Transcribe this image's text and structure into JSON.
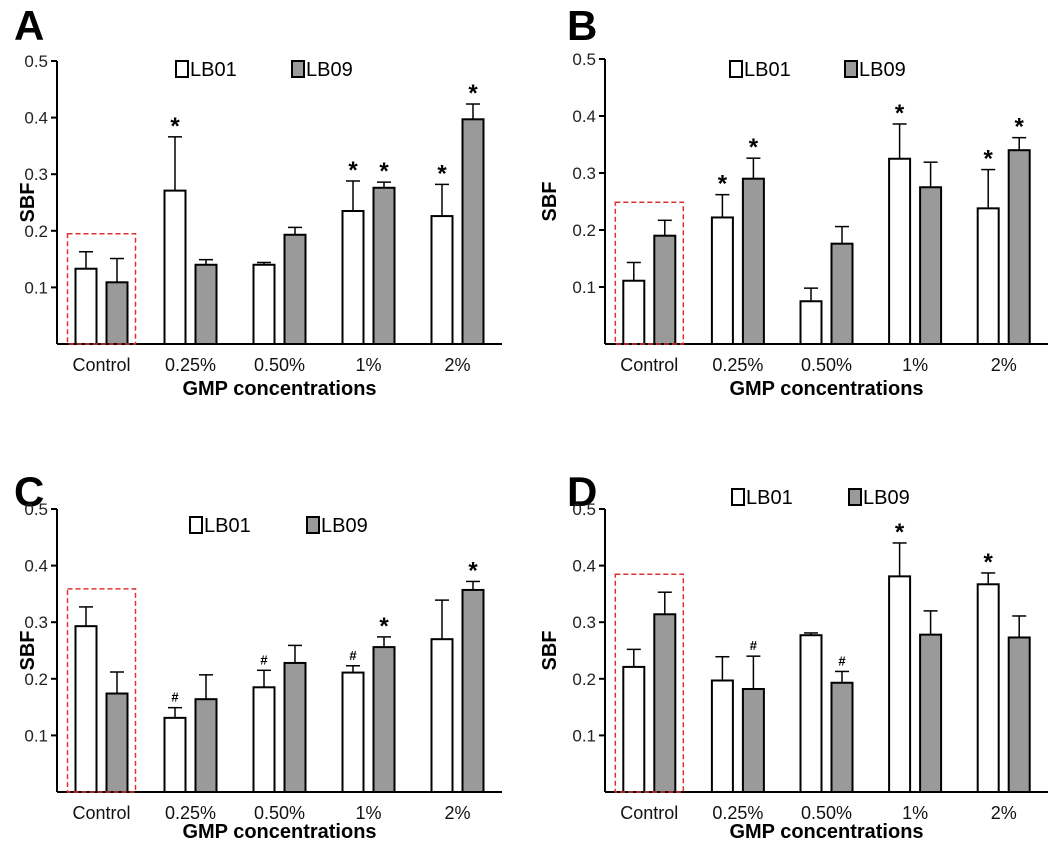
{
  "chart_data": [
    {
      "panel": "A",
      "type": "bar",
      "categories": [
        "Control",
        "0.25%",
        "0.50%",
        "1%",
        "2%"
      ],
      "series": [
        {
          "name": "LB01",
          "values": [
            0.133,
            0.271,
            0.14,
            0.235,
            0.226
          ],
          "errors": [
            0.03,
            0.095,
            0.004,
            0.053,
            0.056
          ],
          "marks": [
            "",
            "*",
            "",
            "*",
            "*"
          ]
        },
        {
          "name": "LB09",
          "values": [
            0.109,
            0.14,
            0.193,
            0.276,
            0.397
          ],
          "errors": [
            0.042,
            0.009,
            0.013,
            0.01,
            0.027
          ],
          "marks": [
            "",
            "",
            "",
            "*",
            "*"
          ]
        }
      ],
      "xlabel": "GMP concentrations",
      "ylabel": "SBF",
      "ylim": [
        0,
        0.5
      ],
      "yticks": [
        "0.1",
        "0.2",
        "0.3",
        "0.4",
        "0.5"
      ],
      "highlight_category": "Control"
    },
    {
      "panel": "B",
      "type": "bar",
      "categories": [
        "Control",
        "0.25%",
        "0.50%",
        "1%",
        "2%"
      ],
      "series": [
        {
          "name": "LB01",
          "values": [
            0.111,
            0.222,
            0.075,
            0.325,
            0.238
          ],
          "errors": [
            0.032,
            0.04,
            0.023,
            0.061,
            0.068
          ],
          "marks": [
            "",
            "*",
            "",
            "*",
            "*"
          ]
        },
        {
          "name": "LB09",
          "values": [
            0.19,
            0.29,
            0.176,
            0.275,
            0.34
          ],
          "errors": [
            0.027,
            0.036,
            0.03,
            0.044,
            0.022
          ],
          "marks": [
            "",
            "*",
            "",
            "",
            "*"
          ]
        }
      ],
      "xlabel": "GMP concentrations",
      "ylabel": "SBF",
      "ylim": [
        0,
        0.5
      ],
      "yticks": [
        "0.1",
        "0.2",
        "0.3",
        "0.4",
        "0.5"
      ],
      "highlight_category": "Control"
    },
    {
      "panel": "C",
      "type": "bar",
      "categories": [
        "Control",
        "0.25%",
        "0.50%",
        "1%",
        "2%"
      ],
      "series": [
        {
          "name": "LB01",
          "values": [
            0.293,
            0.131,
            0.185,
            0.211,
            0.27
          ],
          "errors": [
            0.034,
            0.018,
            0.03,
            0.012,
            0.069
          ],
          "marks": [
            "",
            "#",
            "#",
            "#",
            ""
          ]
        },
        {
          "name": "LB09",
          "values": [
            0.174,
            0.164,
            0.228,
            0.256,
            0.357
          ],
          "errors": [
            0.038,
            0.043,
            0.031,
            0.018,
            0.015
          ],
          "marks": [
            "",
            "",
            "",
            "*",
            "*"
          ]
        }
      ],
      "xlabel": "GMP concentrations",
      "ylabel": "SBF",
      "ylim": [
        0,
        0.5
      ],
      "yticks": [
        "0.1",
        "0.2",
        "0.3",
        "0.4",
        "0.5"
      ],
      "highlight_category": "Control"
    },
    {
      "panel": "D",
      "type": "bar",
      "categories": [
        "Control",
        "0.25%",
        "0.50%",
        "1%",
        "2%"
      ],
      "series": [
        {
          "name": "LB01",
          "values": [
            0.221,
            0.197,
            0.277,
            0.381,
            0.367
          ],
          "errors": [
            0.031,
            0.042,
            0.004,
            0.059,
            0.02
          ],
          "marks": [
            "",
            "",
            "",
            "*",
            "*"
          ]
        },
        {
          "name": "LB09",
          "values": [
            0.314,
            0.182,
            0.193,
            0.278,
            0.273
          ],
          "errors": [
            0.039,
            0.058,
            0.02,
            0.042,
            0.038
          ],
          "marks": [
            "",
            "#",
            "#",
            "",
            ""
          ]
        }
      ],
      "xlabel": "GMP concentrations",
      "ylabel": "SBF",
      "ylim": [
        0,
        0.5
      ],
      "yticks": [
        "0.1",
        "0.2",
        "0.3",
        "0.4",
        "0.5"
      ],
      "highlight_category": "Control"
    }
  ],
  "colors": {
    "lb01_fill": "#ffffff",
    "lb09_fill": "#9a9a9a",
    "bar_stroke": "#000000",
    "highlight_box": "#e03030"
  }
}
